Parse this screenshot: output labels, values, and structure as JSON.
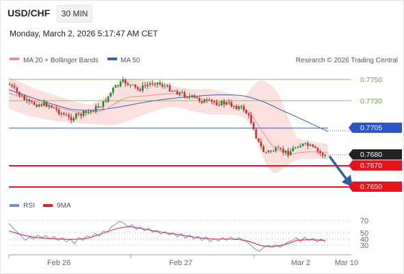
{
  "header": {
    "symbol": "USD/CHF",
    "timeframe": "30 MIN"
  },
  "timestamp": "Monday, March 2, 2026 5:17:47 AM CET",
  "legend": {
    "ma20_label": "MA 20 + Bollinger Bands",
    "ma50_label": "MA 50",
    "ma20_color": "#f08c84",
    "ma50_color": "#3b5fae",
    "copyright": "Research © 2026 Trading Central"
  },
  "rsi_legend": {
    "rsi_label": "RSI",
    "ma_label": "9MA",
    "rsi_color": "#6b8fd6",
    "ma_color": "#e02020"
  },
  "levels": [
    {
      "value": "0.7750",
      "kind": "green"
    },
    {
      "value": "0.7730",
      "kind": "green"
    },
    {
      "value": "0.7705",
      "kind": "resistance-blue"
    },
    {
      "value": "0.7680",
      "kind": "last-price"
    },
    {
      "value": "0.7670",
      "kind": "support-red"
    },
    {
      "value": "0.7650",
      "kind": "support-red"
    }
  ],
  "rsi_axis": [
    "70",
    "50",
    "40",
    "30"
  ],
  "x_axis": [
    "Feb 26",
    "Feb 27",
    "Mar 2",
    "Mar 10"
  ],
  "colors": {
    "green_line": "#8cc06a",
    "blue_line": "#2a56c6",
    "red_line": "#e8141b",
    "last_price_bg": "#222222",
    "up_candle": "#1e8a2e",
    "down_candle": "#cf2b2b",
    "band_fill": "#fbd9d9",
    "arrow": "#2d5da8"
  }
}
